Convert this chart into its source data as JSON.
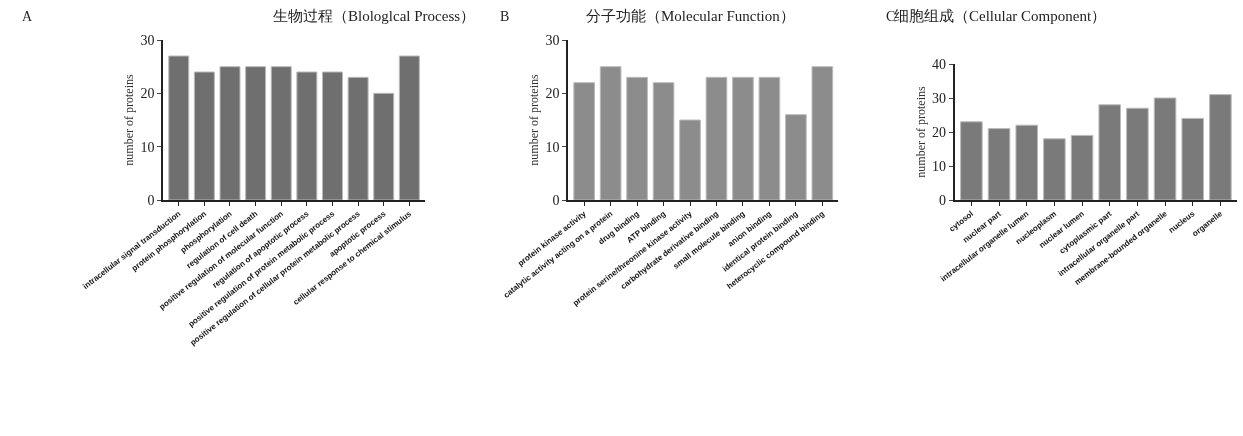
{
  "chart_data": [
    {
      "type": "bar",
      "title": "生物过程（Blologlcal Process）",
      "annotations": [
        "A"
      ],
      "ylabel": "number of proteins",
      "categories": [
        "intracellular signal transduction",
        "protein phosphorylation",
        "phosphorylation",
        "regulation of cell death",
        "positive regulation of molecular function",
        "regulation of apoptotic process",
        "positive regulation of protein metabolic process",
        "positive regulation of cellular protein metabolic process",
        "apoptotic process",
        "cellular response to chemical stimulus"
      ],
      "values": [
        27,
        24,
        25,
        25,
        25,
        24,
        24,
        23,
        20,
        27
      ],
      "color": "#6f6f6f",
      "ylim": [
        0,
        30
      ],
      "yticks": [
        0,
        10,
        20,
        30
      ]
    },
    {
      "type": "bar",
      "title": "分子功能（Molecular Function）",
      "annotations": [
        "B"
      ],
      "ylabel": "number of proteins",
      "categories": [
        "protein kinase activity",
        "catalytic activity acting on a protein",
        "drug binding",
        "ATP binding",
        "protein serine/threonine kinase activity",
        "carbohydrate derivative binding",
        "small molecule binding",
        "anion binding",
        "identical protein binding",
        "heterocyclic compound binding"
      ],
      "values": [
        22,
        25,
        23,
        22,
        15,
        23,
        23,
        23,
        16,
        25
      ],
      "color": "#8c8c8c",
      "ylim": [
        0,
        30
      ],
      "yticks": [
        0,
        10,
        20,
        30
      ]
    },
    {
      "type": "bar",
      "title": "细胞组成（Cellular Component）",
      "annotations": [
        "C"
      ],
      "ylabel": "number of proteins",
      "categories": [
        "cytosol",
        "nuclear part",
        "intracellular organelle lumen",
        "nucleoplasm",
        "nuclear lumen",
        "cytoplasmic part",
        "intracellular organelle part",
        "membrane-bounded organelle",
        "nucleus",
        "organelle"
      ],
      "values": [
        23,
        21,
        22,
        18,
        19,
        28,
        27,
        30,
        24,
        31
      ],
      "color": "#7a7a7a",
      "ylim": [
        0,
        40
      ],
      "yticks": [
        0,
        10,
        20,
        30,
        40
      ]
    }
  ]
}
